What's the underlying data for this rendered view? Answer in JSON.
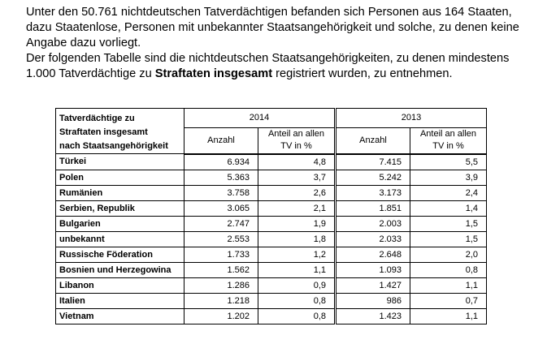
{
  "paragraphs": [
    {
      "lines": [
        "Unter den 50.761 nichtdeutschen Tatverdächtigen befanden sich Personen aus 164 Staaten,",
        "dazu Staatenlose, Personen mit unbekannter Staatsangehörigkeit und solche, zu denen keine",
        "Angabe dazu vorliegt."
      ]
    },
    {
      "lines": [
        "Der folgenden Tabelle sind die nichtdeutschen Staatsangehörigkeiten, zu denen mindestens"
      ],
      "last_line": {
        "before": "1.000 Tatverdächtige zu ",
        "bold": "Straftaten insgesamt",
        "after": " registriert wurden, zu entnehmen."
      }
    }
  ],
  "table": {
    "row_header": [
      "Tatverdächtige zu",
      "Straftaten insgesamt",
      "nach Staatsangehörigkeit"
    ],
    "years": [
      "2014",
      "2013"
    ],
    "columns": [
      "Anzahl",
      "Anteil an allen",
      "TV in %"
    ],
    "rows": [
      [
        "Türkei",
        "6.934",
        "4,8",
        "7.415",
        "5,5"
      ],
      [
        "Polen",
        "5.363",
        "3,7",
        "5.242",
        "3,9"
      ],
      [
        "Rumänien",
        "3.758",
        "2,6",
        "3.173",
        "2,4"
      ],
      [
        "Serbien, Republik",
        "3.065",
        "2,1",
        "1.851",
        "1,4"
      ],
      [
        "Bulgarien",
        "2.747",
        "1,9",
        "2.003",
        "1,5"
      ],
      [
        "unbekannt",
        "2.553",
        "1,8",
        "2.033",
        "1,5"
      ],
      [
        "Russische Föderation",
        "1.733",
        "1,2",
        "2.648",
        "2,0"
      ],
      [
        "Bosnien und Herzegowina",
        "1.562",
        "1,1",
        "1.093",
        "0,8"
      ],
      [
        "Libanon",
        "1.286",
        "0,9",
        "1.427",
        "1,1"
      ],
      [
        "Italien",
        "1.218",
        "0,8",
        "986",
        "0,7"
      ],
      [
        "Vietnam",
        "1.202",
        "0,8",
        "1.423",
        "1,1"
      ]
    ]
  }
}
